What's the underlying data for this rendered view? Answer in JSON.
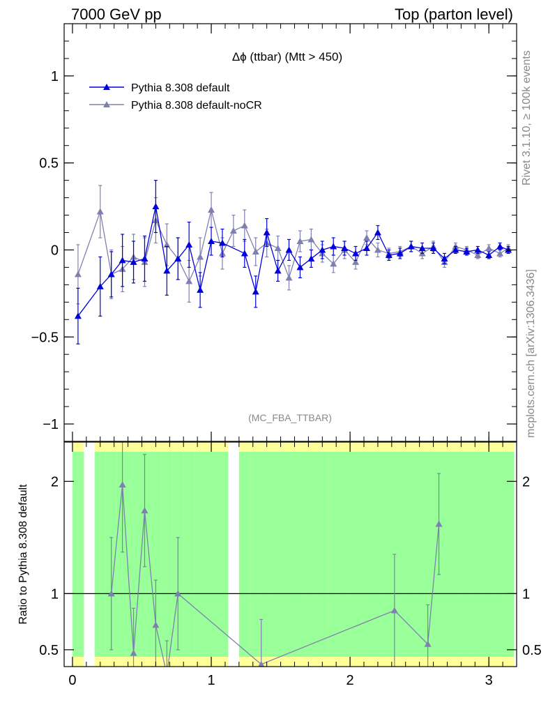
{
  "header": {
    "left": "7000 GeV pp",
    "right": "Top (parton level)"
  },
  "side": {
    "rivet": "Rivet 3.1.10, ≥ 100k events",
    "mcplots": "mcplots.cern.ch [arXiv:1306.3436]"
  },
  "colors": {
    "series1": "#0000dd",
    "series2": "#8080b0",
    "band_green": "#99ff99",
    "band_yellow": "#ffff99"
  },
  "chart_data": [
    {
      "type": "line",
      "title": "Δϕ (ttbar) (Mtt > 450)",
      "watermark": "(MC_FBA_TTBAR)",
      "xlim": [
        -0.06,
        3.2
      ],
      "ylim": [
        -1.1,
        1.3
      ],
      "yticks": [
        "−1",
        "−0.5",
        "0",
        "0.5",
        "1"
      ],
      "yticks_values": [
        -1,
        -0.5,
        0,
        0.5,
        1
      ],
      "legend_placement": "top-left",
      "series": [
        {
          "name": "Pythia 8.308 default",
          "x": [
            0.04,
            0.2,
            0.28,
            0.36,
            0.44,
            0.52,
            0.6,
            0.68,
            0.76,
            0.84,
            0.92,
            1.0,
            1.08,
            1.24,
            1.32,
            1.4,
            1.48,
            1.56,
            1.64,
            1.72,
            1.8,
            1.88,
            1.96,
            2.04,
            2.12,
            2.2,
            2.28,
            2.36,
            2.44,
            2.52,
            2.6,
            2.68,
            2.76,
            2.84,
            2.92,
            3.0,
            3.08,
            3.14
          ],
          "y": [
            -0.38,
            -0.21,
            -0.14,
            -0.06,
            -0.07,
            -0.05,
            0.25,
            -0.12,
            -0.05,
            0.03,
            -0.23,
            0.05,
            0.04,
            -0.02,
            -0.24,
            0.1,
            -0.12,
            0.0,
            -0.1,
            -0.05,
            0.0,
            0.02,
            0.01,
            -0.02,
            0.01,
            0.1,
            -0.03,
            -0.02,
            0.02,
            0.01,
            0.01,
            -0.05,
            0.0,
            -0.01,
            0.0,
            -0.03,
            0.02,
            0.0
          ],
          "yerr": [
            0.16,
            0.17,
            0.13,
            0.15,
            0.12,
            0.13,
            0.15,
            0.14,
            0.12,
            0.13,
            0.1,
            0.08,
            0.08,
            0.08,
            0.09,
            0.08,
            0.06,
            0.06,
            0.06,
            0.05,
            0.05,
            0.05,
            0.04,
            0.04,
            0.04,
            0.04,
            0.03,
            0.03,
            0.03,
            0.03,
            0.03,
            0.03,
            0.02,
            0.02,
            0.02,
            0.02,
            0.02,
            0.02
          ]
        },
        {
          "name": "Pythia 8.308 default-noCR",
          "x": [
            0.04,
            0.2,
            0.28,
            0.36,
            0.44,
            0.52,
            0.6,
            0.68,
            0.76,
            0.84,
            0.92,
            1.0,
            1.08,
            1.16,
            1.24,
            1.32,
            1.4,
            1.48,
            1.56,
            1.64,
            1.72,
            1.8,
            1.88,
            1.96,
            2.04,
            2.12,
            2.2,
            2.28,
            2.36,
            2.44,
            2.52,
            2.6,
            2.68,
            2.76,
            2.84,
            2.92,
            3.0,
            3.08,
            3.14
          ],
          "y": [
            -0.14,
            0.22,
            -0.14,
            -0.11,
            -0.04,
            -0.07,
            0.17,
            0.03,
            -0.05,
            -0.18,
            -0.04,
            0.23,
            -0.02,
            0.11,
            0.14,
            -0.01,
            0.04,
            0.01,
            -0.16,
            0.05,
            0.06,
            -0.02,
            -0.08,
            0.0,
            -0.07,
            0.07,
            0.0,
            -0.02,
            -0.01,
            0.02,
            -0.02,
            0.02,
            -0.07,
            0.02,
            0.0,
            -0.03,
            0.01,
            -0.02,
            0.01
          ],
          "yerr": [
            0.17,
            0.15,
            0.14,
            0.13,
            0.13,
            0.14,
            0.13,
            0.12,
            0.12,
            0.12,
            0.11,
            0.1,
            0.09,
            0.09,
            0.09,
            0.08,
            0.08,
            0.07,
            0.07,
            0.06,
            0.06,
            0.05,
            0.05,
            0.05,
            0.04,
            0.04,
            0.04,
            0.03,
            0.03,
            0.03,
            0.03,
            0.03,
            0.03,
            0.02,
            0.02,
            0.02,
            0.02,
            0.02,
            0.02
          ]
        }
      ]
    },
    {
      "type": "line",
      "ylabel": "Ratio to Pythia 8.308 default",
      "xlim": [
        -0.06,
        3.2
      ],
      "ylim": [
        0.35,
        2.35
      ],
      "xticks": [
        "0",
        "1",
        "2",
        "3"
      ],
      "xticks_values": [
        0,
        1,
        2,
        3
      ],
      "yticks": [
        "0.5",
        "1",
        "2"
      ],
      "yticks_values": [
        0.5,
        1,
        2
      ],
      "reference_line": 1,
      "series": [
        {
          "name": "Pythia 8.308 default-noCR",
          "x": [
            0.28,
            0.36,
            0.44,
            0.52,
            0.6,
            0.68,
            0.76,
            1.36,
            2.32,
            2.56,
            2.64
          ],
          "y": [
            1.0,
            1.97,
            0.47,
            1.74,
            0.72,
            0.28,
            1.0,
            0.37,
            0.85,
            0.55,
            1.62
          ],
          "yerr": [
            0.5,
            0.6,
            0.4,
            0.5,
            0.4,
            0.3,
            0.5,
            0.4,
            0.5,
            0.35,
            0.45
          ]
        }
      ]
    }
  ]
}
